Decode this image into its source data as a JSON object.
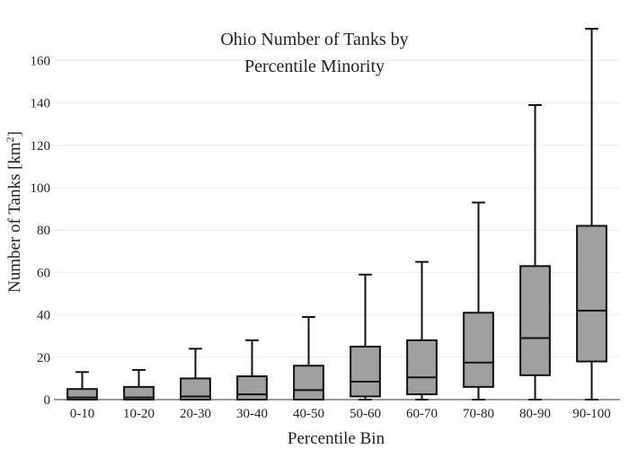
{
  "chart_data": {
    "type": "box",
    "title_lines": [
      "Ohio Number of Tanks by",
      "Percentile Minority"
    ],
    "xlabel": "Percentile Bin",
    "ylabel_main": "Number of Tanks  [km",
    "ylabel_sup": "2",
    "ylabel_end": "]",
    "ylim": [
      0,
      175
    ],
    "yticks": [
      0,
      20,
      40,
      60,
      80,
      100,
      120,
      140,
      160
    ],
    "grid": true,
    "categories": [
      "0-10",
      "10-20",
      "20-30",
      "30-40",
      "40-50",
      "50-60",
      "60-70",
      "70-80",
      "80-90",
      "90-100"
    ],
    "boxes": [
      {
        "min": 0,
        "q1": 0,
        "median": 1,
        "q3": 5,
        "max": 13
      },
      {
        "min": 0,
        "q1": 0,
        "median": 1,
        "q3": 6,
        "max": 14
      },
      {
        "min": 0,
        "q1": 0,
        "median": 1.5,
        "q3": 10,
        "max": 24
      },
      {
        "min": 0,
        "q1": 0,
        "median": 2.5,
        "q3": 11,
        "max": 28
      },
      {
        "min": 0,
        "q1": 0,
        "median": 4.5,
        "q3": 16,
        "max": 39
      },
      {
        "min": 0,
        "q1": 1.5,
        "median": 8.5,
        "q3": 25,
        "max": 59
      },
      {
        "min": 0,
        "q1": 2.5,
        "median": 10.5,
        "q3": 28,
        "max": 65
      },
      {
        "min": 0,
        "q1": 6,
        "median": 17.5,
        "q3": 41,
        "max": 93
      },
      {
        "min": 0,
        "q1": 11.5,
        "median": 29,
        "q3": 63,
        "max": 139
      },
      {
        "min": 0,
        "q1": 18,
        "median": 42,
        "q3": 82,
        "max": 175
      }
    ],
    "box_color": "#a0a0a0",
    "line_color": "#111111"
  }
}
